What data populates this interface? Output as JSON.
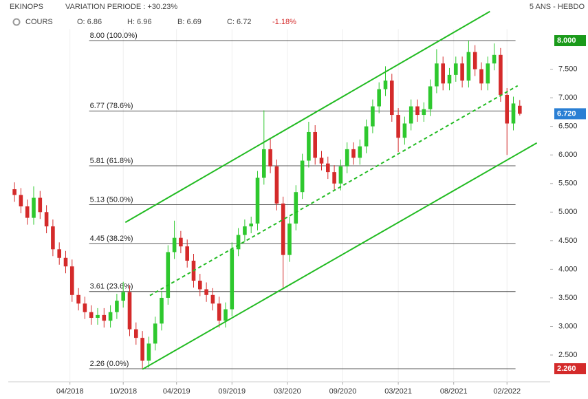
{
  "header": {
    "name": "EKINOPS",
    "variation": "VARIATION PERIODE : +30.23%",
    "period": "5 ANS - HEBDO",
    "series_label": "COURS",
    "open": "O: 6.86",
    "high": "H: 6.96",
    "low": "B: 6.69",
    "close": "C: 6.72",
    "change": "-1.18%"
  },
  "chart_data": {
    "type": "candlestick",
    "x": [
      1,
      4,
      7,
      10,
      13,
      16,
      19,
      22,
      25,
      28,
      31,
      34,
      37,
      40,
      43,
      46,
      49,
      52,
      55,
      58,
      61,
      64,
      67,
      70,
      73,
      76,
      79,
      82,
      85,
      88,
      91,
      94,
      97,
      100,
      103,
      106,
      109,
      112,
      115,
      118,
      121,
      124,
      127,
      130,
      133,
      136,
      139,
      142,
      145,
      148,
      151,
      154,
      157,
      160,
      163,
      166,
      169,
      172,
      175,
      178,
      181,
      184,
      187,
      190,
      193,
      196,
      199,
      202,
      205,
      208,
      211,
      214,
      217,
      220,
      223,
      226,
      229,
      232,
      235,
      238
    ],
    "open": [
      5.4,
      5.3,
      5.1,
      4.9,
      5.25,
      5.0,
      4.75,
      4.35,
      4.2,
      4.05,
      3.55,
      3.4,
      3.25,
      3.15,
      3.2,
      3.1,
      3.25,
      3.45,
      3.6,
      2.95,
      2.8,
      2.4,
      2.7,
      3.05,
      3.5,
      4.3,
      4.55,
      4.4,
      4.15,
      3.8,
      3.65,
      3.55,
      3.4,
      3.1,
      3.3,
      4.35,
      4.6,
      4.75,
      4.8,
      5.6,
      6.1,
      5.8,
      5.15,
      4.25,
      4.8,
      5.35,
      5.9,
      6.4,
      5.95,
      5.85,
      5.7,
      5.5,
      5.8,
      6.1,
      5.95,
      6.15,
      6.5,
      6.85,
      7.15,
      7.3,
      6.7,
      6.3,
      6.55,
      6.85,
      6.7,
      6.8,
      7.2,
      7.6,
      7.25,
      7.4,
      7.6,
      7.3,
      7.8,
      7.5,
      7.25,
      7.6,
      7.75,
      7.05,
      6.55,
      6.86
    ],
    "high": [
      5.52,
      5.42,
      5.22,
      5.45,
      5.37,
      5.12,
      4.87,
      4.47,
      4.32,
      4.17,
      3.67,
      3.52,
      3.37,
      3.32,
      3.32,
      3.37,
      3.57,
      3.78,
      3.72,
      3.07,
      2.92,
      2.82,
      3.17,
      3.62,
      4.42,
      4.85,
      4.67,
      4.52,
      4.27,
      3.92,
      3.77,
      3.67,
      3.52,
      3.42,
      4.47,
      4.72,
      4.87,
      4.92,
      5.72,
      6.78,
      6.3,
      5.92,
      5.27,
      4.92,
      5.47,
      6.02,
      6.58,
      6.52,
      6.07,
      5.97,
      5.82,
      5.92,
      6.22,
      6.22,
      6.27,
      6.62,
      6.97,
      7.27,
      7.55,
      7.42,
      6.82,
      6.67,
      6.97,
      6.97,
      6.92,
      7.32,
      7.85,
      7.72,
      7.52,
      7.72,
      7.72,
      8.0,
      7.92,
      7.62,
      7.72,
      7.95,
      7.87,
      7.17,
      7.02,
      6.96
    ],
    "low": [
      5.18,
      4.98,
      4.78,
      4.78,
      4.88,
      4.63,
      4.23,
      4.08,
      3.93,
      3.43,
      3.28,
      3.13,
      3.03,
      3.03,
      2.98,
      2.98,
      3.13,
      3.33,
      2.83,
      2.68,
      2.26,
      2.28,
      2.58,
      2.93,
      3.38,
      4.18,
      4.28,
      4.03,
      3.68,
      3.53,
      3.43,
      3.28,
      2.98,
      2.98,
      3.18,
      4.23,
      4.48,
      4.63,
      4.68,
      5.48,
      5.68,
      5.03,
      3.68,
      4.13,
      4.68,
      5.23,
      5.78,
      5.83,
      5.73,
      5.58,
      5.38,
      5.38,
      5.68,
      5.83,
      5.83,
      6.03,
      6.38,
      6.73,
      7.03,
      6.58,
      6.05,
      6.18,
      6.43,
      6.58,
      6.58,
      6.68,
      7.08,
      7.13,
      7.13,
      7.28,
      7.18,
      7.18,
      7.38,
      7.13,
      7.13,
      7.48,
      6.93,
      6.0,
      6.43,
      6.69
    ],
    "close": [
      5.3,
      5.1,
      4.9,
      5.25,
      5.0,
      4.75,
      4.35,
      4.2,
      4.05,
      3.55,
      3.4,
      3.25,
      3.15,
      3.2,
      3.1,
      3.25,
      3.45,
      3.6,
      2.95,
      2.8,
      2.4,
      2.7,
      3.05,
      3.5,
      4.3,
      4.55,
      4.4,
      4.15,
      3.8,
      3.65,
      3.55,
      3.4,
      3.1,
      3.3,
      4.35,
      4.6,
      4.75,
      4.8,
      5.6,
      6.1,
      5.8,
      5.15,
      4.25,
      4.8,
      5.35,
      5.9,
      6.4,
      5.95,
      5.85,
      5.7,
      5.5,
      5.8,
      6.1,
      5.95,
      6.15,
      6.5,
      6.85,
      7.15,
      7.3,
      6.7,
      6.3,
      6.55,
      6.85,
      6.7,
      6.8,
      7.2,
      7.6,
      7.25,
      7.4,
      7.6,
      7.3,
      7.8,
      7.5,
      7.25,
      7.6,
      7.75,
      7.05,
      6.55,
      6.9,
      6.72
    ],
    "up_color": "#2ec82e",
    "down_color": "#d42a2a",
    "xlim": [
      -2,
      252
    ],
    "ylim": [
      2.03,
      8.2
    ],
    "xticks": [
      {
        "value": 27,
        "label": "04/2018"
      },
      {
        "value": 52,
        "label": "10/2018"
      },
      {
        "value": 77,
        "label": "04/2019"
      },
      {
        "value": 103,
        "label": "09/2019"
      },
      {
        "value": 129,
        "label": "03/2020"
      },
      {
        "value": 155,
        "label": "09/2020"
      },
      {
        "value": 181,
        "label": "03/2021"
      },
      {
        "value": 207,
        "label": "08/2021"
      },
      {
        "value": 232,
        "label": "02/2022"
      }
    ],
    "yticks": [
      {
        "value": 2.5,
        "label": "2.500"
      },
      {
        "value": 3,
        "label": "3.000"
      },
      {
        "value": 3.5,
        "label": "3.500"
      },
      {
        "value": 4,
        "label": "4.000"
      },
      {
        "value": 4.5,
        "label": "4.500"
      },
      {
        "value": 5,
        "label": "5.000"
      },
      {
        "value": 5.5,
        "label": "5.500"
      },
      {
        "value": 6,
        "label": "6.000"
      },
      {
        "value": 6.5,
        "label": "6.500"
      },
      {
        "value": 7,
        "label": "7.000"
      },
      {
        "value": 7.5,
        "label": "7.500"
      }
    ],
    "grid": true,
    "fib_levels": [
      {
        "value": 8.0,
        "label": "8.00 (100.0%)"
      },
      {
        "value": 6.77,
        "label": "6.77 (78.6%)"
      },
      {
        "value": 5.81,
        "label": "5.81 (61.8%)"
      },
      {
        "value": 5.13,
        "label": "5.13 (50.0%)"
      },
      {
        "value": 4.45,
        "label": "4.45 (38.2%)"
      },
      {
        "value": 3.61,
        "label": "3.61 (23.6%)"
      },
      {
        "value": 2.26,
        "label": "2.26 (0.0%)"
      }
    ],
    "fib_x": [
      36,
      236
    ],
    "trend_lines": [
      {
        "style": "solid",
        "x": [
          53,
          224
        ],
        "y": [
          4.82,
          8.51
        ]
      },
      {
        "style": "dashed",
        "x": [
          64.5,
          237
        ],
        "y": [
          3.54,
          7.21
        ]
      },
      {
        "style": "solid",
        "x": [
          61,
          246
        ],
        "y": [
          2.25,
          6.21
        ]
      }
    ],
    "trend_color": "#22bb22",
    "badges": [
      {
        "value": 8.0,
        "label": "8.000",
        "color": "#1a9a1a"
      },
      {
        "value": 6.72,
        "label": "6.720",
        "color": "#2a7fd4"
      },
      {
        "value": 2.26,
        "label": "2.260",
        "color": "#d42a2a"
      }
    ]
  }
}
